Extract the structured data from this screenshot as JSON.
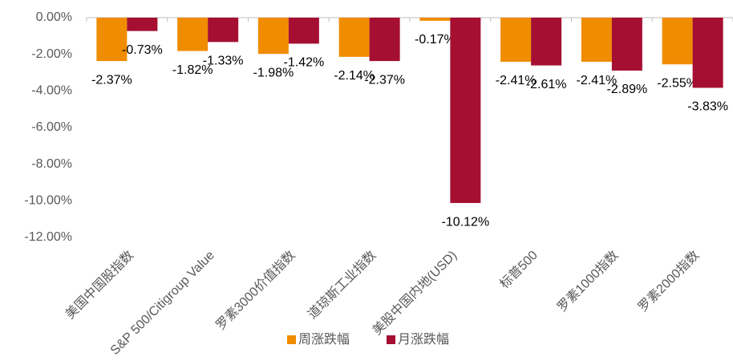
{
  "chart_data": {
    "type": "bar",
    "categories": [
      "美国中国股指数",
      "S&P 500/Citigroup Value",
      "罗素3000价值指数",
      "道琼斯工业指数",
      "美股中国内地(USD)",
      "标普500",
      "罗素1000指数",
      "罗素2000指数"
    ],
    "series": [
      {
        "name": "周涨跌幅",
        "color": "#f08c00",
        "values": [
          -2.37,
          -1.82,
          -1.98,
          -2.14,
          -0.17,
          -2.41,
          -2.41,
          -2.55
        ],
        "value_labels": [
          "-2.37%",
          "-1.82%",
          "-1.98%",
          "-2.14%",
          "-0.17%",
          "-2.41%",
          "-2.41%",
          "-2.55%"
        ]
      },
      {
        "name": "月涨跌幅",
        "color": "#a50f32",
        "values": [
          -0.73,
          -1.33,
          -1.42,
          -2.37,
          -10.12,
          -2.61,
          -2.89,
          -3.83
        ],
        "value_labels": [
          "-0.73%",
          "-1.33%",
          "-1.42%",
          "-2.37%",
          "-10.12%",
          "-2.61%",
          "-2.89%",
          "-3.83%"
        ]
      }
    ],
    "ylim": [
      -12,
      0
    ],
    "yticks": [
      {
        "value": 0,
        "label": "0.00%"
      },
      {
        "value": -2,
        "label": "-2.00%"
      },
      {
        "value": -4,
        "label": "-4.00%"
      },
      {
        "value": -6,
        "label": "-6.00%"
      },
      {
        "value": -8,
        "label": "-8.00%"
      },
      {
        "value": -10,
        "label": "-10.00%"
      },
      {
        "value": -12,
        "label": "-12.00%"
      }
    ],
    "grid": false,
    "legend": "bottom"
  }
}
